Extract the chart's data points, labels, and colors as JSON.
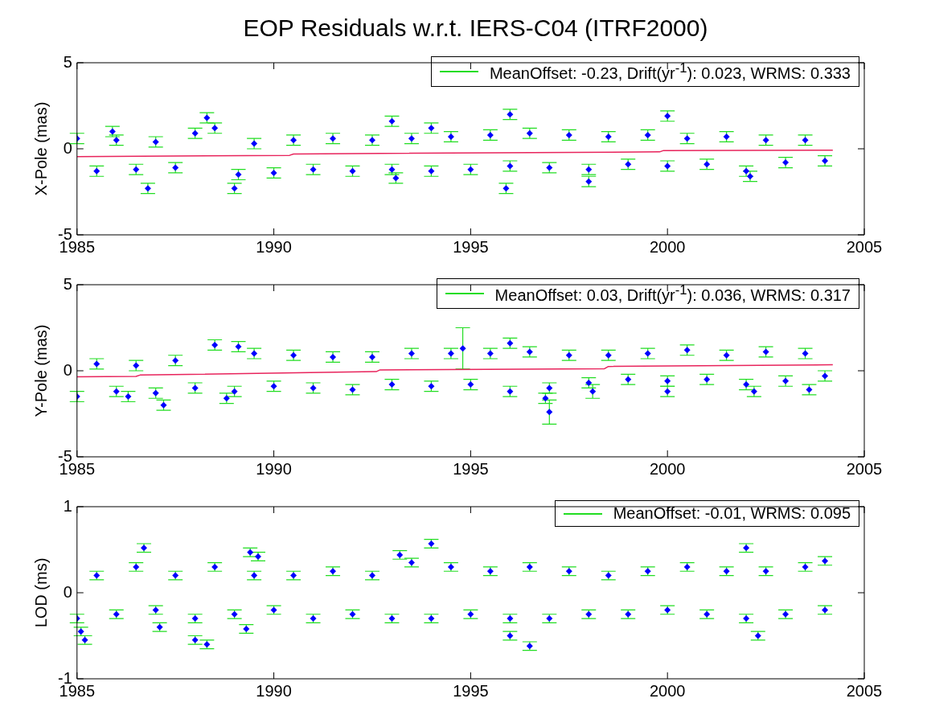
{
  "chart_data": [
    {
      "type": "scatter",
      "title": "EOP Residuals w.r.t. IERS-C04 (ITRF2000)",
      "ylabel": "X-Pole (mas)",
      "xlim": [
        1985,
        2005
      ],
      "xticks": [
        1985,
        1990,
        1995,
        2000,
        2005
      ],
      "ylim": [
        -5,
        5
      ],
      "yticks": [
        -5,
        0,
        5
      ],
      "legend": "top right",
      "marker": "diamond",
      "series": [
        {
          "name": "MeanOffset: -0.23, Drift(yr$^{-1}$): 0.023, WRMS: 0.333",
          "color": "#0000ff",
          "x": [
            1985.0,
            1985.5,
            1986.0,
            1986.5,
            1987.0,
            1987.5,
            1988.0,
            1988.5,
            1989.1,
            1989.5,
            1990.0,
            1990.5,
            1991.0,
            1991.5,
            1992.0,
            1992.5,
            1993.0,
            1993.5,
            1994.0,
            1994.5,
            1995.0,
            1995.5,
            1996.0,
            1996.5,
            1997.0,
            1997.5,
            1998.0,
            1998.5,
            1999.0,
            1999.5,
            2000.0,
            2000.5,
            2001.0,
            2001.5,
            2002.0,
            2002.5,
            2003.0,
            2003.5,
            2004.0,
            1985.9,
            1986.8,
            1988.3,
            1989.0,
            1993.0,
            1993.1,
            1994.0,
            1996.0,
            1995.9,
            1998.0,
            2000.0,
            2002.1
          ],
          "values": [
            0.6,
            -1.3,
            0.5,
            -1.2,
            0.4,
            -1.1,
            0.9,
            1.2,
            -1.5,
            0.3,
            -1.4,
            0.5,
            -1.2,
            0.6,
            -1.3,
            0.5,
            -1.2,
            0.6,
            -1.3,
            0.7,
            -1.2,
            0.8,
            -1.0,
            0.9,
            -1.1,
            0.8,
            -1.2,
            0.7,
            -0.9,
            0.8,
            -1.0,
            0.6,
            -0.9,
            0.7,
            -1.3,
            0.5,
            -0.8,
            0.5,
            -0.7,
            1.0,
            -2.3,
            1.8,
            -2.3,
            1.6,
            -1.7,
            1.2,
            2.0,
            -2.3,
            -1.9,
            1.9,
            -1.6
          ],
          "errors": [
            0.3,
            0.3,
            0.3,
            0.3,
            0.3,
            0.3,
            0.3,
            0.3,
            0.3,
            0.3,
            0.3,
            0.3,
            0.3,
            0.3,
            0.3,
            0.3,
            0.3,
            0.3,
            0.3,
            0.3,
            0.3,
            0.3,
            0.3,
            0.3,
            0.3,
            0.3,
            0.3,
            0.3,
            0.3,
            0.3,
            0.3,
            0.3,
            0.3,
            0.3,
            0.3,
            0.3,
            0.3,
            0.3,
            0.3,
            0.3,
            0.3,
            0.3,
            0.3,
            0.3,
            0.3,
            0.3,
            0.3,
            0.3,
            0.3,
            0.3,
            0.3
          ]
        },
        {
          "type": "line",
          "marker": "none",
          "color": "#e8245c",
          "x": [
            1985,
            1990.4,
            1990.5,
            1999.8,
            1999.9,
            2004.2
          ],
          "values": [
            -0.45,
            -0.38,
            -0.3,
            -0.18,
            -0.1,
            -0.08
          ]
        }
      ]
    },
    {
      "type": "scatter",
      "ylabel": "Y-Pole (mas)",
      "xlim": [
        1985,
        2005
      ],
      "xticks": [
        1985,
        1990,
        1995,
        2000,
        2005
      ],
      "ylim": [
        -5,
        5
      ],
      "yticks": [
        -5,
        0,
        5
      ],
      "legend": "top right",
      "marker": "diamond",
      "series": [
        {
          "name": "MeanOffset: 0.03, Drift(yr$^{-1}$): 0.036, WRMS: 0.317",
          "color": "#0000ff",
          "x": [
            1985.0,
            1985.5,
            1986.0,
            1986.5,
            1987.0,
            1987.5,
            1988.0,
            1988.5,
            1989.0,
            1989.5,
            1990.0,
            1990.5,
            1991.0,
            1991.5,
            1992.0,
            1992.5,
            1993.0,
            1993.5,
            1994.0,
            1994.5,
            1995.0,
            1995.5,
            1996.0,
            1996.5,
            1997.0,
            1997.5,
            1998.0,
            1998.5,
            1999.0,
            1999.5,
            2000.0,
            2000.5,
            2001.0,
            2001.5,
            2002.0,
            2002.5,
            2003.0,
            2003.5,
            2004.0,
            1986.3,
            1987.2,
            1988.8,
            1989.1,
            1994.8,
            1996.0,
            1996.9,
            1997.0,
            1998.1,
            2000.0,
            2002.2,
            2003.6
          ],
          "values": [
            -1.5,
            0.4,
            -1.2,
            0.3,
            -1.3,
            0.6,
            -1.0,
            1.5,
            -1.2,
            1.0,
            -0.9,
            0.9,
            -1.0,
            0.8,
            -1.1,
            0.8,
            -0.8,
            1.0,
            -0.9,
            1.0,
            -0.8,
            1.0,
            -1.2,
            1.1,
            -1.0,
            0.9,
            -0.7,
            0.9,
            -0.5,
            1.0,
            -0.6,
            1.2,
            -0.5,
            0.9,
            -0.8,
            1.1,
            -0.6,
            1.0,
            -0.3,
            -1.5,
            -2.0,
            -1.6,
            1.4,
            1.3,
            1.6,
            -1.6,
            -2.4,
            -1.2,
            -1.2,
            -1.2,
            -1.1
          ],
          "errors": [
            0.3,
            0.3,
            0.3,
            0.3,
            0.3,
            0.3,
            0.3,
            0.3,
            0.3,
            0.3,
            0.3,
            0.3,
            0.3,
            0.3,
            0.3,
            0.3,
            0.3,
            0.3,
            0.3,
            0.3,
            0.3,
            0.3,
            0.3,
            0.3,
            0.3,
            0.3,
            0.3,
            0.3,
            0.3,
            0.3,
            0.3,
            0.3,
            0.3,
            0.3,
            0.3,
            0.3,
            0.3,
            0.3,
            0.3,
            0.3,
            0.3,
            0.3,
            0.3,
            1.2,
            0.3,
            0.3,
            0.7,
            0.4,
            0.3,
            0.3,
            0.3
          ]
        },
        {
          "type": "line",
          "marker": "none",
          "color": "#e8245c",
          "x": [
            1985,
            1986.5,
            1986.6,
            1992.6,
            1992.7,
            1998.4,
            1998.5,
            2004.2
          ],
          "values": [
            -0.35,
            -0.33,
            -0.25,
            -0.05,
            0.05,
            0.12,
            0.25,
            0.35
          ]
        }
      ]
    },
    {
      "type": "scatter",
      "ylabel": "LOD (ms)",
      "xlim": [
        1985,
        2005
      ],
      "xticks": [
        1985,
        1990,
        1995,
        2000,
        2005
      ],
      "ylim": [
        -1,
        1
      ],
      "yticks": [
        -1,
        0,
        1
      ],
      "legend": "top right",
      "marker": "diamond",
      "series": [
        {
          "name": "MeanOffset: -0.01, WRMS: 0.095",
          "color": "#0000ff",
          "x": [
            1985.0,
            1985.5,
            1986.0,
            1986.5,
            1987.0,
            1987.5,
            1988.0,
            1988.5,
            1989.0,
            1989.5,
            1990.0,
            1990.5,
            1991.0,
            1991.5,
            1992.0,
            1992.5,
            1993.0,
            1993.5,
            1994.0,
            1994.5,
            1995.0,
            1995.5,
            1996.0,
            1996.5,
            1997.0,
            1997.5,
            1998.0,
            1998.5,
            1999.0,
            1999.5,
            2000.0,
            2000.5,
            2001.0,
            2001.5,
            2002.0,
            2002.5,
            2003.0,
            2003.5,
            2004.0,
            1985.2,
            1985.1,
            1986.7,
            1987.1,
            1988.0,
            1988.3,
            1989.4,
            1989.6,
            1989.3,
            1993.2,
            1994.0,
            1996.0,
            1996.5,
            2002.0,
            2002.3,
            2004.0
          ],
          "values": [
            -0.3,
            0.2,
            -0.25,
            0.3,
            -0.2,
            0.2,
            -0.3,
            0.3,
            -0.25,
            0.2,
            -0.2,
            0.2,
            -0.3,
            0.25,
            -0.25,
            0.2,
            -0.3,
            0.35,
            -0.3,
            0.3,
            -0.25,
            0.25,
            -0.3,
            0.3,
            -0.3,
            0.25,
            -0.25,
            0.2,
            -0.25,
            0.25,
            -0.2,
            0.3,
            -0.25,
            0.25,
            -0.3,
            0.25,
            -0.25,
            0.3,
            -0.2,
            -0.55,
            -0.45,
            0.52,
            -0.4,
            -0.55,
            -0.6,
            0.47,
            0.42,
            -0.42,
            0.44,
            0.57,
            -0.5,
            -0.62,
            0.52,
            -0.5,
            0.37
          ],
          "errors": [
            0.05,
            0.05,
            0.05,
            0.05,
            0.05,
            0.05,
            0.05,
            0.05,
            0.05,
            0.05,
            0.05,
            0.05,
            0.05,
            0.05,
            0.05,
            0.05,
            0.05,
            0.05,
            0.05,
            0.05,
            0.05,
            0.05,
            0.05,
            0.05,
            0.05,
            0.05,
            0.05,
            0.05,
            0.05,
            0.05,
            0.05,
            0.05,
            0.05,
            0.05,
            0.05,
            0.05,
            0.05,
            0.05,
            0.05,
            0.05,
            0.05,
            0.05,
            0.05,
            0.05,
            0.05,
            0.05,
            0.05,
            0.05,
            0.05,
            0.05,
            0.05,
            0.05,
            0.05,
            0.05,
            0.05
          ]
        }
      ]
    }
  ]
}
